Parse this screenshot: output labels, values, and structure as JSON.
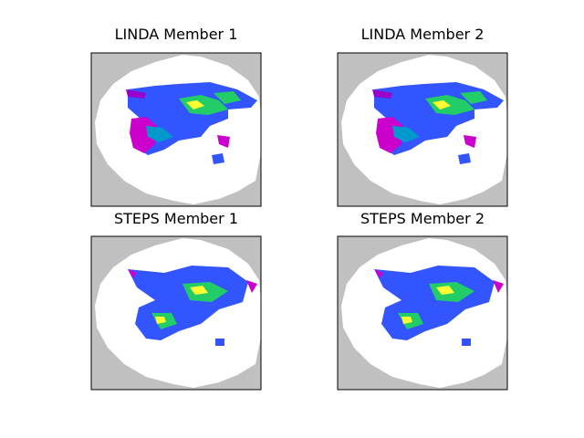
{
  "panels": [
    {
      "title": "LINDA Member 1"
    },
    {
      "title": "LINDA Member 2"
    },
    {
      "title": "STEPS Member 1"
    },
    {
      "title": "STEPS Member 2"
    }
  ]
}
